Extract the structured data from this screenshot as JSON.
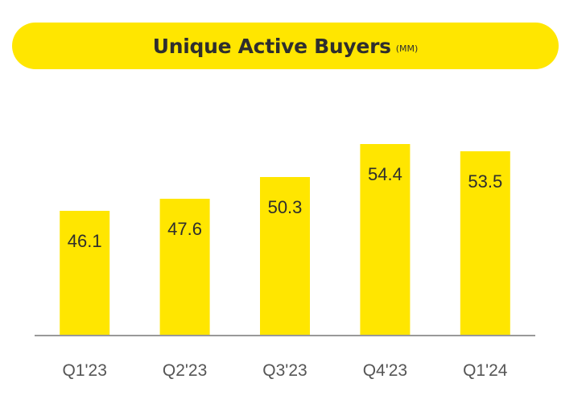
{
  "title": {
    "main": "Unique Active Buyers",
    "unit": "(MM)"
  },
  "colors": {
    "bar": "#FFE600",
    "title_bg": "#FFE600",
    "axis": "#999999",
    "text": "#2e2e2e",
    "tick_text": "#555555"
  },
  "chart_data": {
    "type": "bar",
    "title": "Unique Active Buyers (MM)",
    "categories": [
      "Q1'23",
      "Q2'23",
      "Q3'23",
      "Q4'23",
      "Q1'24"
    ],
    "values": [
      46.1,
      47.6,
      50.3,
      54.4,
      53.5
    ],
    "data_labels": [
      "46.1",
      "47.6",
      "50.3",
      "54.4",
      "53.5"
    ],
    "xlabel": "",
    "ylabel": "",
    "ylim": [
      30.6,
      55.6
    ],
    "grid": false,
    "legend": "none"
  }
}
